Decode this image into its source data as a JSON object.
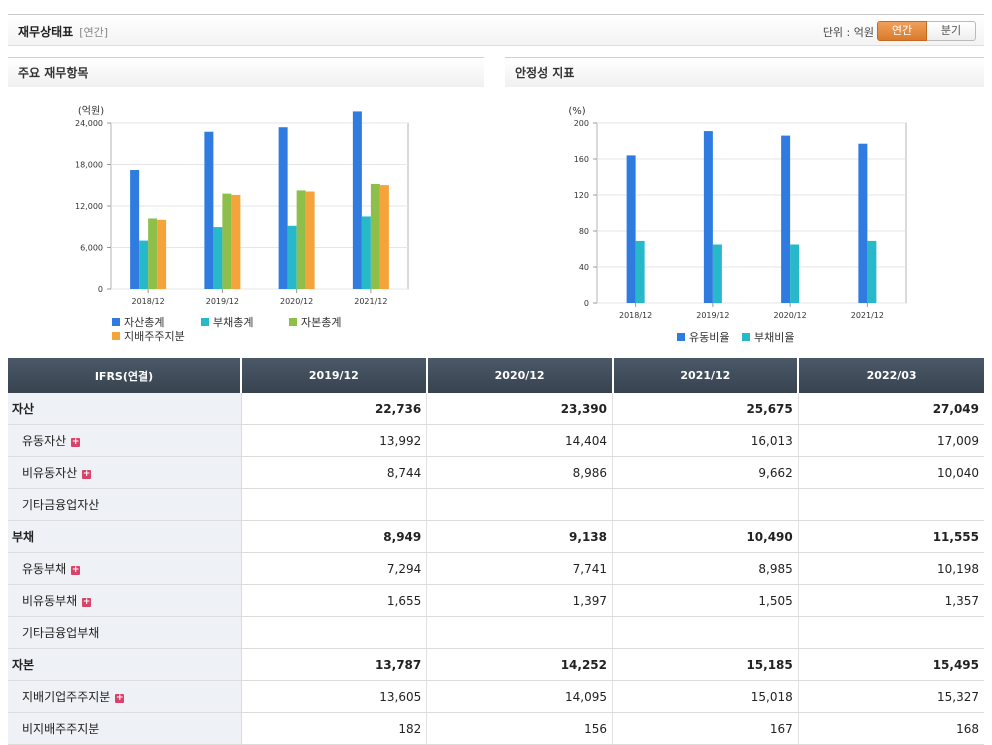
{
  "header": {
    "title": "재무상태표",
    "period_label": "[연간]",
    "unit": "단위 : 억원",
    "toggle_annual": "연간",
    "toggle_quarter": "분기"
  },
  "panel1": {
    "title": "주요 재무항목"
  },
  "panel2": {
    "title": "안정성 지표"
  },
  "chart_data": [
    {
      "type": "bar",
      "ylabel": "(억원)",
      "categories": [
        "2018/12",
        "2019/12",
        "2020/12",
        "2021/12"
      ],
      "y_ticks": [
        "0",
        "6,000",
        "12,000",
        "18,000",
        "24,000"
      ],
      "ylim": [
        0,
        24000
      ],
      "series": [
        {
          "name": "자산총계",
          "color": "#2f7be0",
          "values": [
            17200,
            22736,
            23390,
            25675
          ]
        },
        {
          "name": "부채총계",
          "color": "#27b8c9",
          "values": [
            7000,
            8949,
            9138,
            10490
          ]
        },
        {
          "name": "자본총계",
          "color": "#8dbf4a",
          "values": [
            10200,
            13787,
            14252,
            15185
          ]
        },
        {
          "name": "지배주주지분",
          "color": "#f5a33b",
          "values": [
            10000,
            13605,
            14095,
            15018
          ]
        }
      ],
      "legend": "bottom",
      "grid": true
    },
    {
      "type": "bar",
      "ylabel": "(%)",
      "categories": [
        "2018/12",
        "2019/12",
        "2020/12",
        "2021/12"
      ],
      "y_ticks": [
        "0",
        "40",
        "80",
        "120",
        "160",
        "200"
      ],
      "ylim": [
        0,
        200
      ],
      "series": [
        {
          "name": "유동비율",
          "color": "#2f7be0",
          "values": [
            164,
            191,
            186,
            177
          ]
        },
        {
          "name": "부채비율",
          "color": "#27b8c9",
          "values": [
            69,
            65,
            65,
            69
          ]
        }
      ],
      "legend": "bottom",
      "grid": true
    }
  ],
  "table": {
    "header_label": "IFRS(연결)",
    "columns": [
      "2019/12",
      "2020/12",
      "2021/12",
      "2022/03"
    ],
    "rows": [
      {
        "label": "자산",
        "level": "top",
        "expand": false,
        "values": [
          "22,736",
          "23,390",
          "25,675",
          "27,049"
        ]
      },
      {
        "label": "유동자산",
        "level": "sub",
        "expand": true,
        "values": [
          "13,992",
          "14,404",
          "16,013",
          "17,009"
        ]
      },
      {
        "label": "비유동자산",
        "level": "sub",
        "expand": true,
        "values": [
          "8,744",
          "8,986",
          "9,662",
          "10,040"
        ]
      },
      {
        "label": "기타금융업자산",
        "level": "sub",
        "expand": false,
        "values": [
          "",
          "",
          "",
          ""
        ]
      },
      {
        "label": "부채",
        "level": "top",
        "expand": false,
        "values": [
          "8,949",
          "9,138",
          "10,490",
          "11,555"
        ]
      },
      {
        "label": "유동부채",
        "level": "sub",
        "expand": true,
        "values": [
          "7,294",
          "7,741",
          "8,985",
          "10,198"
        ]
      },
      {
        "label": "비유동부채",
        "level": "sub",
        "expand": true,
        "values": [
          "1,655",
          "1,397",
          "1,505",
          "1,357"
        ]
      },
      {
        "label": "기타금융업부채",
        "level": "sub",
        "expand": false,
        "values": [
          "",
          "",
          "",
          ""
        ]
      },
      {
        "label": "자본",
        "level": "top",
        "expand": false,
        "values": [
          "13,787",
          "14,252",
          "15,185",
          "15,495"
        ]
      },
      {
        "label": "지배기업주주지분",
        "level": "sub",
        "expand": true,
        "values": [
          "13,605",
          "14,095",
          "15,018",
          "15,327"
        ]
      },
      {
        "label": "비지배주주지분",
        "level": "sub",
        "expand": false,
        "values": [
          "182",
          "156",
          "167",
          "168"
        ]
      }
    ]
  }
}
